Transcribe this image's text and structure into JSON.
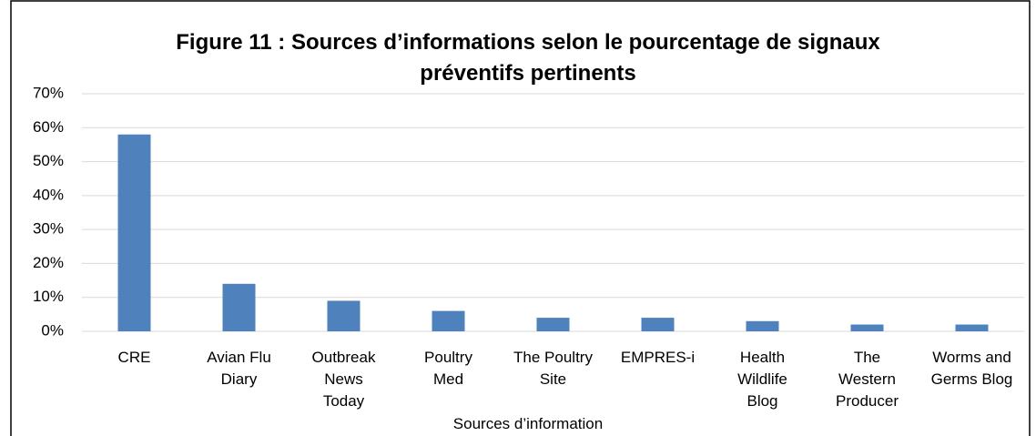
{
  "chart_data": {
    "type": "bar",
    "title": "Figure 11 : Sources d’informations selon le pourcentage de signaux\npréventifs pertinents",
    "x_label": "Sources d’information",
    "categories": [
      "CRE",
      "Avian Flu\nDiary",
      "Outbreak\nNews\nToday",
      "Poultry\nMed",
      "The Poultry\nSite",
      "EMPRES-i",
      "Health\nWildlife\nBlog",
      "The\nWestern\nProducer",
      "Worms and\nGerms Blog"
    ],
    "values": [
      58,
      14,
      9,
      6,
      4,
      4,
      3,
      2,
      2
    ],
    "color": "#4f81bd",
    "ylim": [
      0,
      70
    ],
    "yticks": [
      {
        "value": 0,
        "label": "0%"
      },
      {
        "value": 10,
        "label": "10%"
      },
      {
        "value": 20,
        "label": "20%"
      },
      {
        "value": 30,
        "label": "30%"
      },
      {
        "value": 40,
        "label": "40%"
      },
      {
        "value": 50,
        "label": "50%"
      },
      {
        "value": 60,
        "label": "60%"
      },
      {
        "value": 70,
        "label": "70%"
      }
    ],
    "grid": true
  }
}
